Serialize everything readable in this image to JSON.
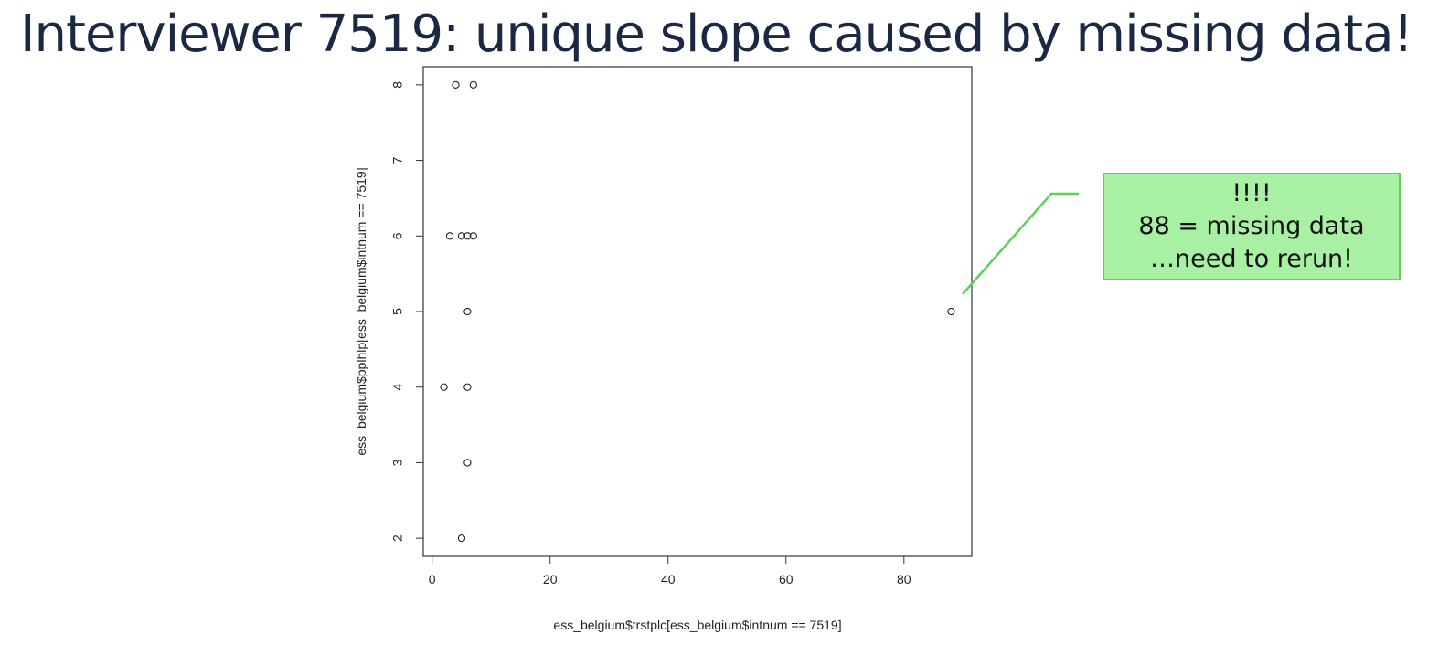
{
  "slide": {
    "title": "Interviewer 7519: unique slope caused by missing data!"
  },
  "callout": {
    "lines": [
      "!!!!",
      "88 = missing data",
      "…need to rerun!"
    ],
    "fill_color": "#a8f0a4",
    "border_color": "#5fd05a"
  },
  "chart_data": {
    "type": "scatter",
    "title": "",
    "xlabel": "ess_belgium$trstplc[ess_belgium$intnum == 7519]",
    "ylabel": "ess_belgium$pplhlp[ess_belgium$intnum == 7519]",
    "xlim": [
      -1.5,
      91.5
    ],
    "ylim": [
      1.76,
      8.24
    ],
    "xticks": [
      0,
      20,
      40,
      60,
      80
    ],
    "yticks": [
      2,
      3,
      4,
      5,
      6,
      7,
      8
    ],
    "grid": false,
    "marker": "open-circle",
    "points": [
      {
        "x": 4,
        "y": 8
      },
      {
        "x": 7,
        "y": 8
      },
      {
        "x": 3,
        "y": 6
      },
      {
        "x": 5,
        "y": 6
      },
      {
        "x": 6,
        "y": 6
      },
      {
        "x": 7,
        "y": 6
      },
      {
        "x": 6,
        "y": 5
      },
      {
        "x": 2,
        "y": 4
      },
      {
        "x": 6,
        "y": 4
      },
      {
        "x": 6,
        "y": 3
      },
      {
        "x": 5,
        "y": 2
      },
      {
        "x": 88,
        "y": 5
      }
    ]
  }
}
